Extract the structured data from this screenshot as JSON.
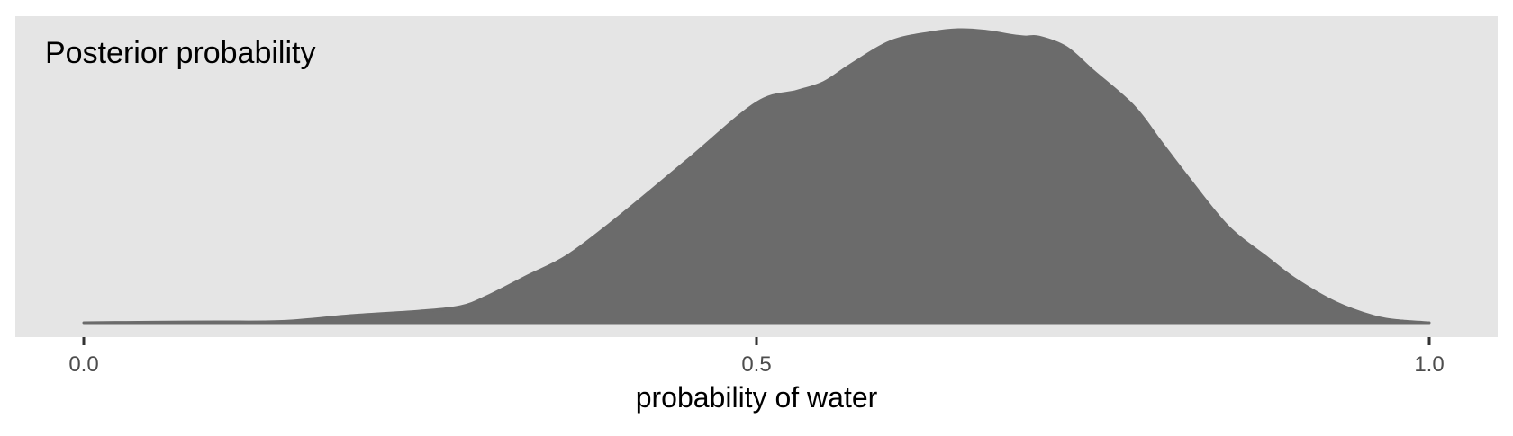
{
  "chart_data": {
    "type": "area",
    "title": "Posterior probability",
    "xlabel": "probability of water",
    "ylabel": "",
    "xlim": [
      0.0,
      1.0
    ],
    "x_ticks": [
      "0.0",
      "0.5",
      "1.0"
    ],
    "grid": false,
    "legend": null,
    "fill_color": "#6b6b6b",
    "panel_color": "#e5e5e5",
    "x": [
      0.0,
      0.05,
      0.1,
      0.15,
      0.2,
      0.25,
      0.28,
      0.3,
      0.33,
      0.36,
      0.4,
      0.45,
      0.5,
      0.53,
      0.55,
      0.57,
      0.6,
      0.63,
      0.65,
      0.67,
      0.69,
      0.7,
      0.71,
      0.73,
      0.75,
      0.78,
      0.8,
      0.82,
      0.85,
      0.88,
      0.9,
      0.93,
      0.96,
      0.98,
      1.0
    ],
    "density": [
      0.0,
      0.002,
      0.003,
      0.005,
      0.025,
      0.04,
      0.055,
      0.09,
      0.16,
      0.23,
      0.37,
      0.56,
      0.75,
      0.79,
      0.82,
      0.88,
      0.96,
      0.99,
      1.0,
      0.995,
      0.98,
      0.975,
      0.975,
      0.94,
      0.86,
      0.74,
      0.62,
      0.5,
      0.33,
      0.22,
      0.15,
      0.07,
      0.02,
      0.006,
      0.0
    ]
  }
}
